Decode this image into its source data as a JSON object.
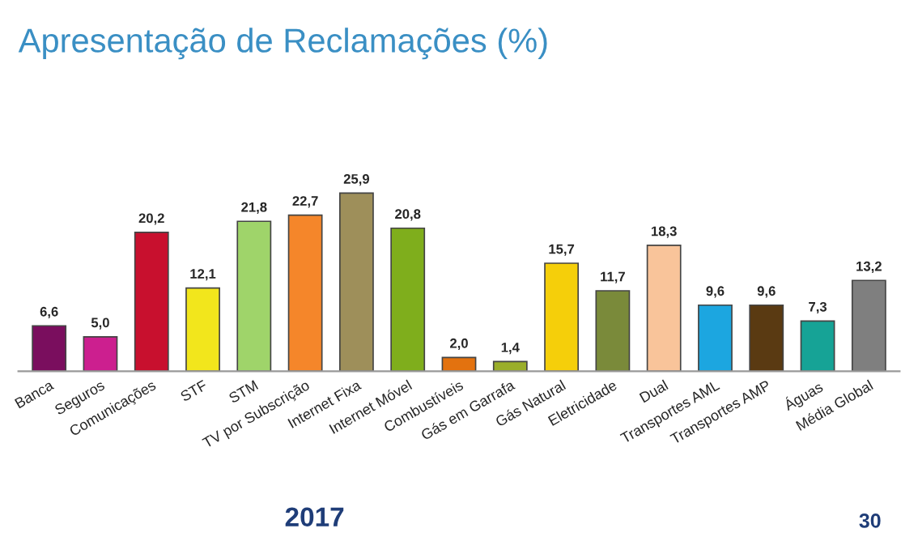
{
  "chart_data": {
    "type": "bar",
    "title": "Apresentação de Reclamações (%)",
    "categories": [
      "Banca",
      "Seguros",
      "Comunicações",
      "STF",
      "STM",
      "TV por Subscrição",
      "Internet Fixa",
      "Internet Móvel",
      "Combustíveis",
      "Gás em Garrafa",
      "Gás Natural",
      "Eletricidade",
      "Dual",
      "Transportes AML",
      "Transportes AMP",
      "Águas",
      "Média Global"
    ],
    "values": [
      6.6,
      5.0,
      20.2,
      12.1,
      21.8,
      22.7,
      25.9,
      20.8,
      2.0,
      1.4,
      15.7,
      11.7,
      18.3,
      9.6,
      9.6,
      7.3,
      13.2
    ],
    "value_labels": [
      "6,6",
      "5,0",
      "20,2",
      "12,1",
      "21,8",
      "22,7",
      "25,9",
      "20,8",
      "2,0",
      "1,4",
      "15,7",
      "11,7",
      "18,3",
      "9,6",
      "9,6",
      "7,3",
      "13,2"
    ],
    "colors": [
      "#7a0e5e",
      "#cc1f8f",
      "#c8102e",
      "#f2e61c",
      "#9fd46a",
      "#f5862a",
      "#9e8f5a",
      "#7fae1c",
      "#e3720f",
      "#9aae2a",
      "#f5cf0a",
      "#7a8a3a",
      "#f9c49a",
      "#1ca6e0",
      "#5a3a12",
      "#16a396",
      "#7f7f7f"
    ],
    "grid": false,
    "annotations": [
      "2017",
      "30"
    ]
  }
}
